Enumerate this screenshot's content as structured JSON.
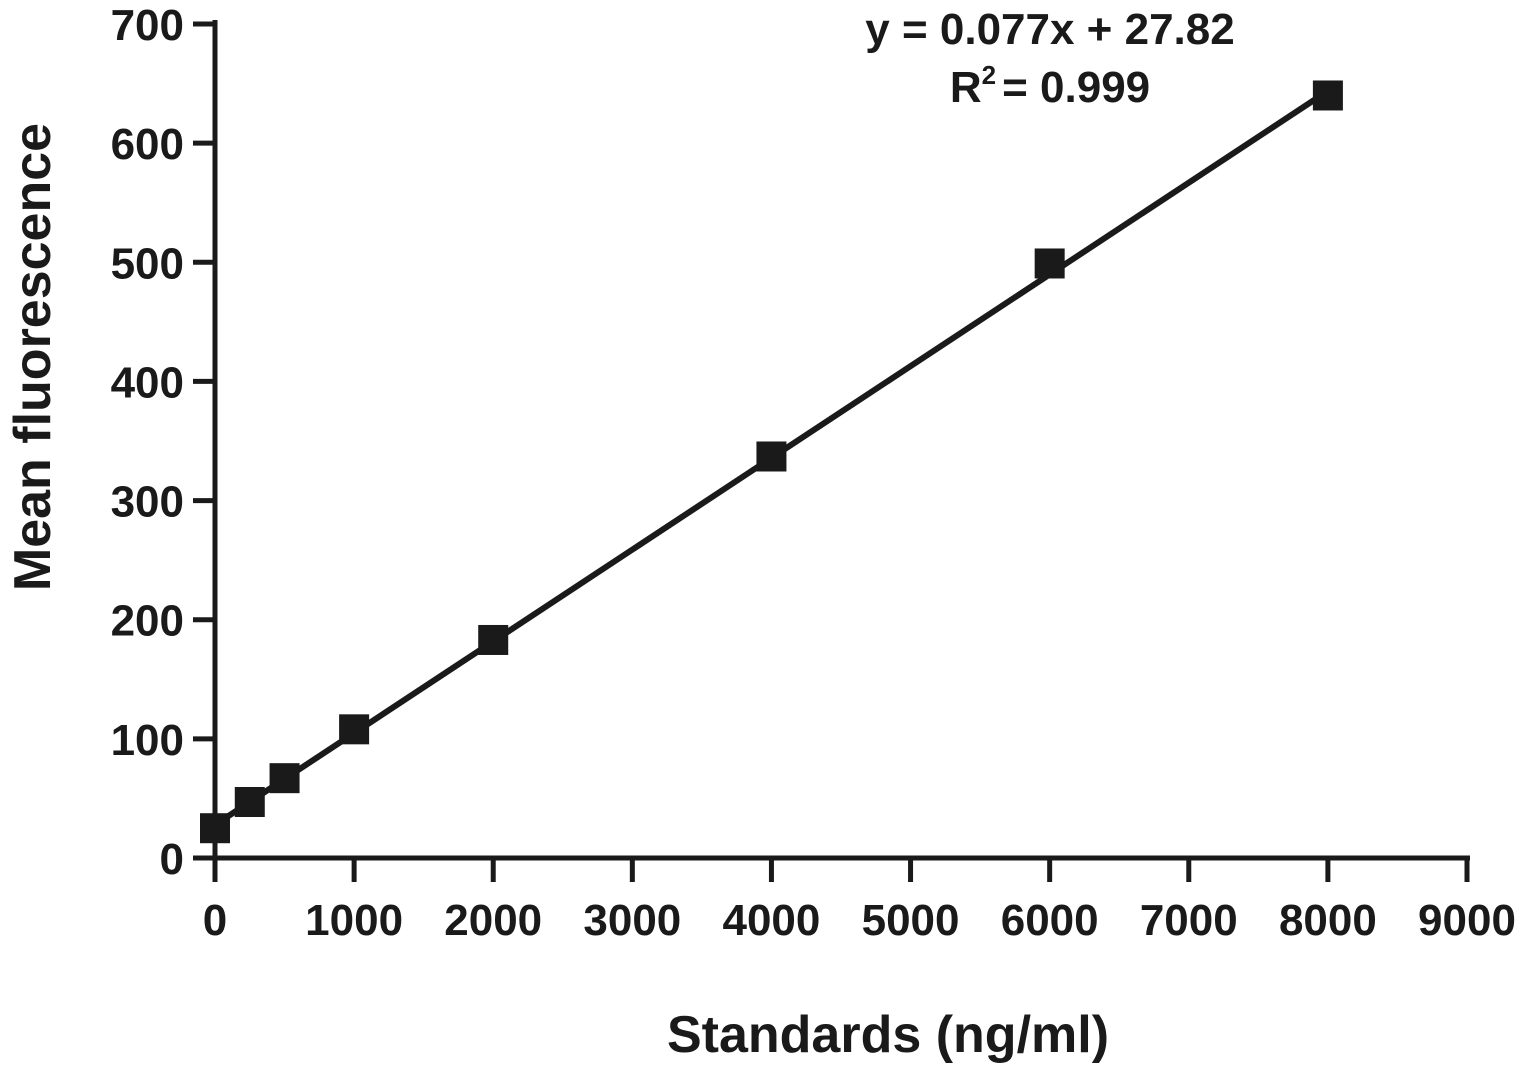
{
  "chart_data": {
    "type": "scatter",
    "title": "",
    "xlabel": "Standards (ng/ml)",
    "ylabel": "Mean fluorescence",
    "xlim": [
      0,
      9000
    ],
    "ylim": [
      0,
      700
    ],
    "x_ticks": [
      "0",
      "1000",
      "2000",
      "3000",
      "4000",
      "5000",
      "6000",
      "7000",
      "8000",
      "9000"
    ],
    "y_ticks": [
      "0",
      "100",
      "200",
      "300",
      "400",
      "500",
      "600",
      "700"
    ],
    "grid": false,
    "legend": "none",
    "series": [
      {
        "marker": "square",
        "color": "#1a1a1a",
        "x": [
          0,
          250,
          500,
          1000,
          2000,
          4000,
          6000,
          8000
        ],
        "y": [
          25,
          47,
          67,
          108,
          183,
          337,
          499,
          640
        ]
      }
    ],
    "fit_line": {
      "slope": 0.077,
      "intercept": 27.82,
      "x_range": [
        0,
        8000
      ]
    },
    "annotations": {
      "equation": "y = 0.077x + 27.82",
      "r2_prefix": "R",
      "r2_sup": "2",
      "r2_value": "= 0.999"
    }
  }
}
